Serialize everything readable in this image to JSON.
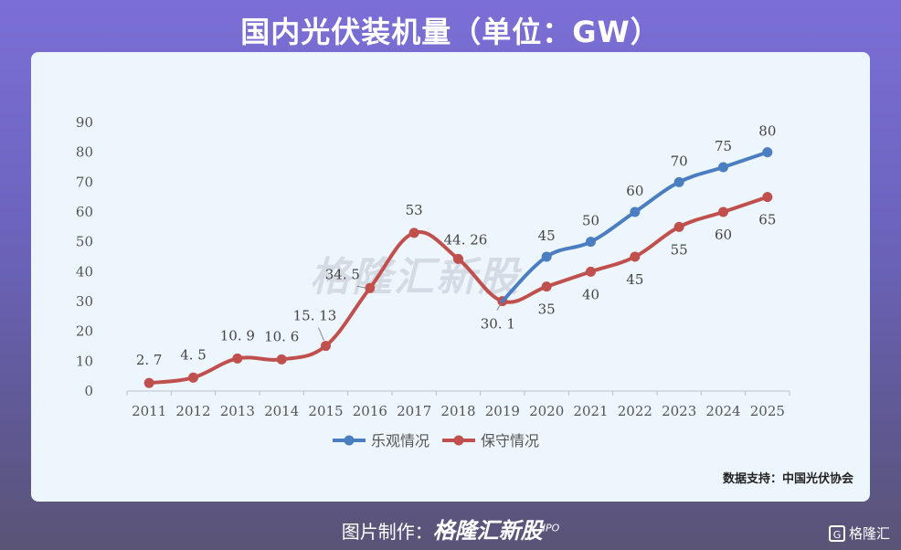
{
  "page": {
    "title": "国内光伏装机量（单位：GW）",
    "source": "数据支持：中国光伏协会",
    "watermark": "格隆汇新股",
    "footer_prefix": "图片制作：",
    "footer_brand": "格隆汇新股",
    "footer_brand_sub": "IPO",
    "corner_logo": "格隆汇"
  },
  "chart_data": {
    "type": "line",
    "x": [
      "2011",
      "2012",
      "2013",
      "2014",
      "2015",
      "2016",
      "2017",
      "2018",
      "2019",
      "2020",
      "2021",
      "2022",
      "2023",
      "2024",
      "2025"
    ],
    "ylim": [
      0,
      90
    ],
    "yticks": [
      0,
      10,
      20,
      30,
      40,
      50,
      60,
      70,
      80,
      90
    ],
    "legend_position": "bottom-center",
    "series": [
      {
        "name": "乐观情况",
        "color": "#4a7ec0",
        "values": [
          null,
          null,
          null,
          null,
          null,
          null,
          null,
          null,
          30.1,
          45,
          50,
          60,
          70,
          75,
          80
        ],
        "labels": [
          "",
          "",
          "",
          "",
          "",
          "",
          "",
          "",
          "",
          "45",
          "50",
          "60",
          "70",
          "75",
          "80"
        ]
      },
      {
        "name": "保守情况",
        "color": "#c0504d",
        "values": [
          2.7,
          4.5,
          10.9,
          10.6,
          15.13,
          34.5,
          53,
          44.26,
          30.1,
          35,
          40,
          45,
          55,
          60,
          65
        ],
        "labels": [
          "2. 7",
          "4. 5",
          "10. 9",
          "10. 6",
          "15. 13",
          "34. 5",
          "53",
          "44. 26",
          "30. 1",
          "35",
          "40",
          "45",
          "55",
          "60",
          "65"
        ]
      }
    ]
  }
}
